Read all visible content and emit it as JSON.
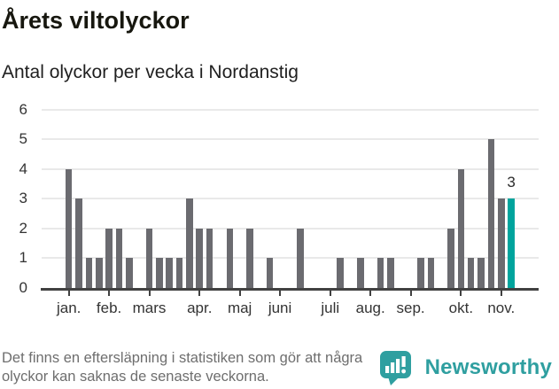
{
  "header": {
    "title": "Årets viltolyckor",
    "subtitle": "Antal olyckor per vecka i Nordanstig"
  },
  "chart_data": {
    "type": "bar",
    "title": "Årets viltolyckor",
    "subtitle": "Antal olyckor per vecka i Nordanstig",
    "x_unit": "vecka",
    "values": [
      4,
      3,
      1,
      1,
      2,
      2,
      1,
      0,
      2,
      1,
      1,
      1,
      3,
      2,
      2,
      0,
      2,
      0,
      2,
      0,
      1,
      0,
      0,
      2,
      0,
      0,
      0,
      1,
      0,
      1,
      0,
      1,
      1,
      0,
      0,
      1,
      1,
      0,
      2,
      4,
      1,
      1,
      5,
      3,
      3
    ],
    "ylim": [
      0,
      6
    ],
    "yticks": [
      0,
      1,
      2,
      3,
      4,
      5,
      6
    ],
    "grid": "horizontal",
    "legend": "none",
    "month_ticks": [
      {
        "label": "jan.",
        "week_index": 0
      },
      {
        "label": "feb.",
        "week_index": 4
      },
      {
        "label": "mars",
        "week_index": 8
      },
      {
        "label": "apr.",
        "week_index": 13
      },
      {
        "label": "maj",
        "week_index": 17
      },
      {
        "label": "juni",
        "week_index": 21
      },
      {
        "label": "juli",
        "week_index": 26
      },
      {
        "label": "aug.",
        "week_index": 30
      },
      {
        "label": "sep.",
        "week_index": 34
      },
      {
        "label": "okt.",
        "week_index": 39
      },
      {
        "label": "nov.",
        "week_index": 43
      }
    ],
    "highlight": {
      "index": 44,
      "label": "3",
      "color": "#00a49d"
    },
    "bar_color": "#6b6b70",
    "colors": {
      "grid": "#e9e9e9",
      "axis": "#414141",
      "tick_labels": "#333333",
      "value_label": "#2b2b2b"
    }
  },
  "footer": {
    "note": "Det finns en eftersläpning i statistiken som gör att några olyckor kan saknas de senaste veckorna.",
    "brand": "Newsworthy",
    "brand_color": "#2f9fa0"
  }
}
